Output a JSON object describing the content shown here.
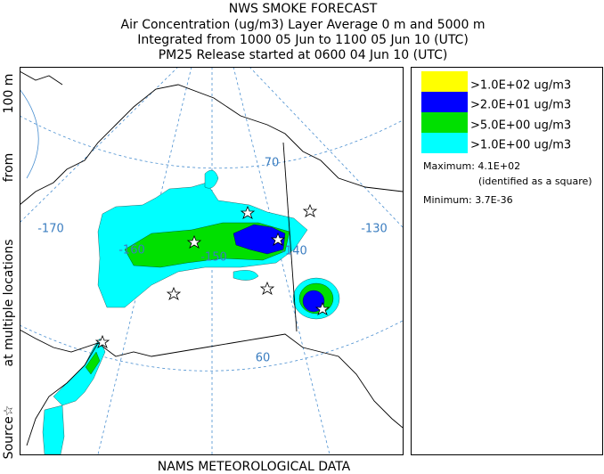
{
  "header": {
    "lines": [
      "NWS SMOKE FORECAST",
      "Air Concentration (ug/m3) Layer Average    0 m and  5000 m",
      "Integrated from 1000 05 Jun to 1100 05 Jun 10 (UTC)",
      "PM25 Release started at 0600 04 Jun 10 (UTC)"
    ]
  },
  "side_label": {
    "parts": [
      "Source☆",
      "at multiple locations",
      "from",
      "100 m"
    ]
  },
  "footer": "NAMS METEOROLOGICAL DATA",
  "legend": {
    "entries": [
      {
        "label": ">1.0E+02 ug/m3",
        "color": "#ffff00"
      },
      {
        "label": ">2.0E+01 ug/m3",
        "color": "#0000ff"
      },
      {
        "label": ">5.0E+00 ug/m3",
        "color": "#00e000"
      },
      {
        "label": ">1.0E+00 ug/m3",
        "color": "#00ffff"
      }
    ],
    "maximum": {
      "label": "Maximum:",
      "value": "4.1E+02",
      "note": "(identified as a square)"
    },
    "minimum": {
      "label": "Minimum:",
      "value": "3.7E-36"
    }
  },
  "map": {
    "labels": [
      "-170",
      "-160",
      "-150",
      "-140",
      "-130",
      "70",
      "60"
    ]
  }
}
